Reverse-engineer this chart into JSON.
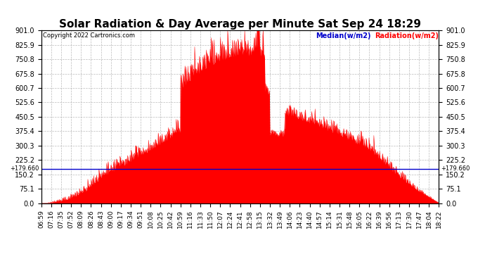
{
  "title": "Solar Radiation & Day Average per Minute Sat Sep 24 18:29",
  "copyright": "Copyright 2022 Cartronics.com",
  "legend_median": "Median(w/m2)",
  "legend_radiation": "Radiation(w/m2)",
  "ymin": 0.0,
  "ymax": 901.0,
  "yticks": [
    0.0,
    75.1,
    150.2,
    225.2,
    300.3,
    375.4,
    450.5,
    525.6,
    600.7,
    675.8,
    750.8,
    825.9,
    901.0
  ],
  "ytick_labels": [
    "0.0",
    "75.1",
    "150.2",
    "225.2",
    "300.3",
    "375.4",
    "450.5",
    "525.6",
    "600.7",
    "675.8",
    "750.8",
    "825.9",
    "901.0"
  ],
  "median_line_y": 179.66,
  "median_label": "+179.660",
  "background_color": "#ffffff",
  "radiation_color": "#ff0000",
  "median_color": "#0000cd",
  "grid_color": "#aaaaaa",
  "title_color": "#000000",
  "title_fontsize": 11,
  "tick_fontsize": 7,
  "xtick_labels": [
    "06:59",
    "07:16",
    "07:35",
    "07:52",
    "08:09",
    "08:26",
    "08:43",
    "09:00",
    "09:17",
    "09:34",
    "09:51",
    "10:08",
    "10:25",
    "10:42",
    "10:59",
    "11:16",
    "11:33",
    "11:50",
    "12:07",
    "12:24",
    "12:41",
    "12:58",
    "13:15",
    "13:32",
    "13:49",
    "14:06",
    "14:23",
    "14:40",
    "14:57",
    "15:14",
    "15:31",
    "15:48",
    "16:05",
    "16:22",
    "16:39",
    "16:56",
    "17:13",
    "17:30",
    "17:47",
    "18:04",
    "18:22"
  ]
}
